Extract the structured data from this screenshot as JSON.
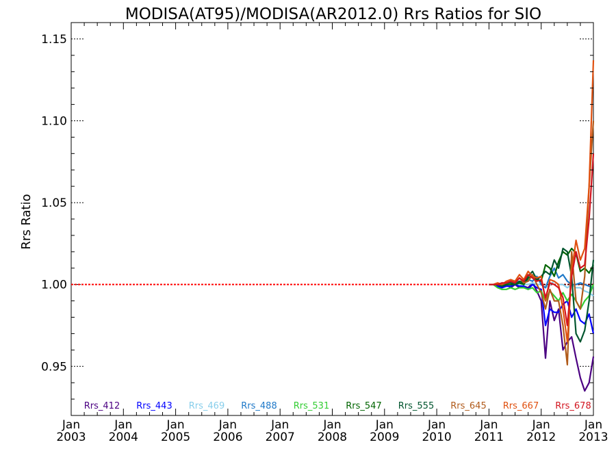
{
  "chart_data": {
    "type": "line",
    "title": "MODISA(AT95)/MODISA(AR2012.0)  Rrs Ratios for SIO",
    "xlabel": "",
    "ylabel": "Rrs Ratio",
    "xlim": [
      2003.0,
      2013.0
    ],
    "ylim": [
      0.92,
      1.16
    ],
    "yticks": [
      0.95,
      1.0,
      1.05,
      1.1,
      1.15
    ],
    "ytick_labels": [
      "0.95",
      "1.00",
      "1.05",
      "1.10",
      "1.15"
    ],
    "xticks": [
      {
        "value": 2003,
        "line1": "Jan",
        "line2": "2003"
      },
      {
        "value": 2004,
        "line1": "Jan",
        "line2": "2004"
      },
      {
        "value": 2005,
        "line1": "Jan",
        "line2": "2005"
      },
      {
        "value": 2006,
        "line1": "Jan",
        "line2": "2006"
      },
      {
        "value": 2007,
        "line1": "Jan",
        "line2": "2007"
      },
      {
        "value": 2008,
        "line1": "Jan",
        "line2": "2008"
      },
      {
        "value": 2009,
        "line1": "Jan",
        "line2": "2009"
      },
      {
        "value": 2010,
        "line1": "Jan",
        "line2": "2010"
      },
      {
        "value": 2011,
        "line1": "Jan",
        "line2": "2011"
      },
      {
        "value": 2012,
        "line1": "Jan",
        "line2": "2012"
      },
      {
        "value": 2013,
        "line1": "Jan",
        "line2": "2013"
      }
    ],
    "reference_lines": [
      {
        "y": 1.0,
        "color": "#ff0000",
        "style": "dotted"
      }
    ],
    "legend_position": "bottom",
    "x": [
      2011.0,
      2011.083,
      2011.167,
      2011.25,
      2011.333,
      2011.417,
      2011.5,
      2011.583,
      2011.667,
      2011.75,
      2011.833,
      2011.917,
      2012.0,
      2012.083,
      2012.167,
      2012.25,
      2012.333,
      2012.417,
      2012.5,
      2012.583,
      2012.667,
      2012.75,
      2012.833,
      2012.917,
      2013.0
    ],
    "series": [
      {
        "name": "Rrs_412",
        "color": "#4b0082",
        "values": [
          1.0,
          1.0,
          0.999,
          0.998,
          1.0,
          0.998,
          1.0,
          0.998,
          0.999,
          0.998,
          1.001,
          0.996,
          0.99,
          0.955,
          0.99,
          0.978,
          0.985,
          0.96,
          0.965,
          0.968,
          0.955,
          0.943,
          0.935,
          0.94,
          0.956
        ]
      },
      {
        "name": "Rrs_443",
        "color": "#0000ff",
        "values": [
          1.0,
          1.0,
          0.999,
          0.998,
          0.999,
          0.999,
          1.0,
          0.999,
          0.999,
          0.997,
          1.0,
          0.998,
          0.997,
          0.975,
          0.985,
          0.983,
          0.983,
          0.988,
          0.99,
          0.98,
          0.985,
          0.978,
          0.976,
          0.982,
          0.97
        ]
      },
      {
        "name": "Rrs_469",
        "color": "#87ceeb",
        "values": [
          1.0,
          1.0,
          1.0,
          1.0,
          1.0,
          1.0,
          1.001,
          1.0,
          1.0,
          1.0,
          1.001,
          1.0,
          1.0,
          0.998,
          1.0,
          1.002,
          1.0,
          1.0,
          0.998,
          1.0,
          0.998,
          0.998,
          0.996,
          0.995,
          0.993
        ]
      },
      {
        "name": "Rrs_488",
        "color": "#1e78c8",
        "values": [
          1.0,
          1.0,
          1.0,
          1.001,
          1.0,
          1.002,
          1.001,
          1.002,
          1.001,
          1.003,
          1.002,
          1.005,
          1.0,
          0.998,
          1.005,
          1.01,
          1.004,
          1.006,
          1.002,
          1.0,
          1.0,
          1.001,
          1.0,
          0.999,
          0.998
        ]
      },
      {
        "name": "Rrs_531",
        "color": "#32cd32",
        "values": [
          1.0,
          1.0,
          0.998,
          0.997,
          0.997,
          0.998,
          0.997,
          0.998,
          0.998,
          0.997,
          0.998,
          0.995,
          0.996,
          0.99,
          0.996,
          0.993,
          0.99,
          0.995,
          0.99,
          0.994,
          0.99,
          0.985,
          0.99,
          0.993,
          1.0
        ]
      },
      {
        "name": "Rrs_547",
        "color": "#006400",
        "values": [
          1.0,
          1.0,
          1.0,
          0.999,
          1.0,
          1.0,
          1.0,
          1.001,
          1.0,
          1.004,
          1.005,
          1.003,
          1.002,
          1.012,
          1.01,
          1.005,
          1.014,
          1.02,
          1.018,
          1.022,
          1.019,
          1.008,
          1.01,
          1.007,
          1.012
        ]
      },
      {
        "name": "Rrs_555",
        "color": "#00552e",
        "values": [
          1.0,
          1.0,
          1.0,
          0.999,
          1.001,
          1.001,
          1.0,
          1.002,
          1.001,
          1.005,
          1.008,
          1.003,
          1.005,
          1.008,
          1.006,
          1.015,
          1.01,
          1.022,
          1.02,
          1.005,
          0.97,
          0.965,
          0.972,
          0.99,
          1.015
        ]
      },
      {
        "name": "Rrs_645",
        "color": "#b05a1a",
        "values": [
          1.0,
          1.0,
          1.0,
          1.0,
          1.001,
          1.002,
          1.001,
          1.004,
          1.001,
          1.002,
          1.006,
          1.0,
          0.995,
          0.985,
          0.997,
          0.99,
          0.99,
          0.975,
          0.951,
          1.02,
          0.99,
          0.985,
          1.005,
          1.06,
          1.1
        ]
      },
      {
        "name": "Rrs_667",
        "color": "#e0500f",
        "values": [
          1.0,
          1.0,
          1.001,
          1.0,
          1.002,
          1.003,
          1.002,
          1.006,
          1.003,
          1.008,
          1.005,
          1.004,
          1.005,
          0.99,
          1.003,
          1.002,
          1.0,
          0.985,
          0.965,
          1.008,
          1.027,
          1.015,
          1.022,
          1.06,
          1.137
        ]
      },
      {
        "name": "Rrs_678",
        "color": "#d2141e",
        "values": [
          1.0,
          1.0,
          1.0,
          1.001,
          1.001,
          1.002,
          1.001,
          1.004,
          1.002,
          1.006,
          1.004,
          1.002,
          1.003,
          0.992,
          1.001,
          1.0,
          0.998,
          0.992,
          0.975,
          1.005,
          1.02,
          1.01,
          1.012,
          1.04,
          1.08
        ]
      }
    ]
  }
}
